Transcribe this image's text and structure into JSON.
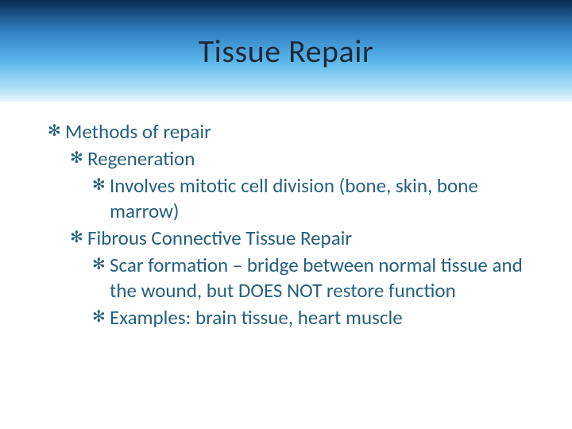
{
  "slide": {
    "title": "Tissue Repair",
    "title_fontsize": 40,
    "title_color": "#1b2a3a",
    "band_gradient": [
      "#0a2b52",
      "#2f7fc0",
      "#5ab6ea",
      "#a8ddf5",
      "#e8f6fd"
    ],
    "body_color": "#24607e",
    "body_fontsize": 25,
    "background_color": "#ffffff",
    "bullet_glyph": "✻",
    "bullets": [
      {
        "level": 1,
        "text": "Methods of repair"
      },
      {
        "level": 2,
        "text": "Regeneration"
      },
      {
        "level": 3,
        "text": "Involves mitotic cell division (bone, skin, bone marrow)"
      },
      {
        "level": 2,
        "text": "Fibrous Connective Tissue Repair"
      },
      {
        "level": 3,
        "text": "Scar formation – bridge between normal tissue and the wound, but DOES NOT restore function"
      },
      {
        "level": 3,
        "text": "Examples:  brain tissue, heart muscle"
      }
    ]
  }
}
